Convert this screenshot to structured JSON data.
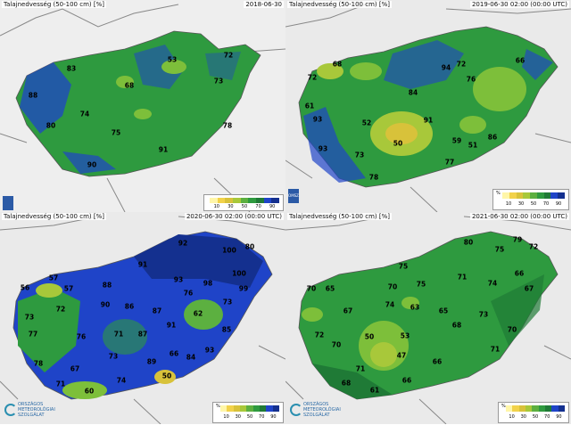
{
  "panels": [
    {
      "title": "Talajnedvesség (50-100 cm) [%]",
      "date": "2018-06-30",
      "legend": {
        "unit": "",
        "ticks": [
          "10",
          "30",
          "50",
          "70",
          "90"
        ]
      },
      "logo": {
        "type": "small",
        "text": ""
      },
      "labels": [
        "83",
        "53",
        "72",
        "68",
        "88",
        "73",
        "74",
        "80",
        "75",
        "78",
        "91",
        "90"
      ]
    },
    {
      "title": "Talajnedvesség (50-100 cm) [%]",
      "date": "2019-06-30 02:00 (00:00 UTC)",
      "legend": {
        "unit": "%",
        "ticks": [
          "10",
          "30",
          "50",
          "70",
          "90"
        ]
      },
      "logo": {
        "type": "small",
        "text": "OMSZ"
      },
      "labels": [
        "94",
        "72",
        "66",
        "68",
        "72",
        "76",
        "84",
        "61",
        "91",
        "52",
        "86",
        "93",
        "50",
        "59",
        "51",
        "93",
        "73",
        "77",
        "78"
      ]
    },
    {
      "title": "Talajnedvesség (50-100 cm) [%]",
      "date": "2020-06-30 02:00 (00:00 UTC)",
      "legend": {
        "unit": "%",
        "ticks": [
          "10",
          "30",
          "50",
          "70",
          "90"
        ]
      },
      "logo": {
        "type": "full",
        "text": "ORSZÁGOS METEOROLÓGIAI SZOLGÁLAT"
      },
      "labels": [
        "92",
        "100",
        "80",
        "57",
        "91",
        "100",
        "56",
        "57",
        "88",
        "93",
        "98",
        "99",
        "72",
        "90",
        "86",
        "76",
        "73",
        "87",
        "62",
        "73",
        "91",
        "77",
        "76",
        "71",
        "87",
        "85",
        "78",
        "73",
        "93",
        "67",
        "89",
        "66",
        "84",
        "71",
        "74",
        "50",
        "60"
      ]
    },
    {
      "title": "Talajnedvesség (50-100 cm) [%]",
      "date": "2021-06-30 02:00 (00:00 UTC)",
      "legend": {
        "unit": "%",
        "ticks": [
          "10",
          "30",
          "50",
          "70",
          "90"
        ]
      },
      "logo": {
        "type": "full",
        "text": "ORSZÁGOS METEOROLÓGIAI SZOLGÁLAT"
      },
      "labels": [
        "80",
        "79",
        "72",
        "75",
        "75",
        "70",
        "65",
        "70",
        "75",
        "71",
        "74",
        "66",
        "67",
        "63",
        "65",
        "67",
        "74",
        "73",
        "50",
        "68",
        "72",
        "70",
        "53",
        "70",
        "71",
        "47",
        "66",
        "71",
        "68",
        "66",
        "61"
      ]
    }
  ],
  "colors": {
    "green": "#2e9a3f",
    "dark_green": "#1f7a36",
    "blue": "#1f44c8",
    "navy": "#14308f",
    "light_green": "#7dbf3a",
    "yellow": "#d8c23a",
    "teal": "#1f7a8a",
    "land": "#eaeaea",
    "border": "#888"
  }
}
